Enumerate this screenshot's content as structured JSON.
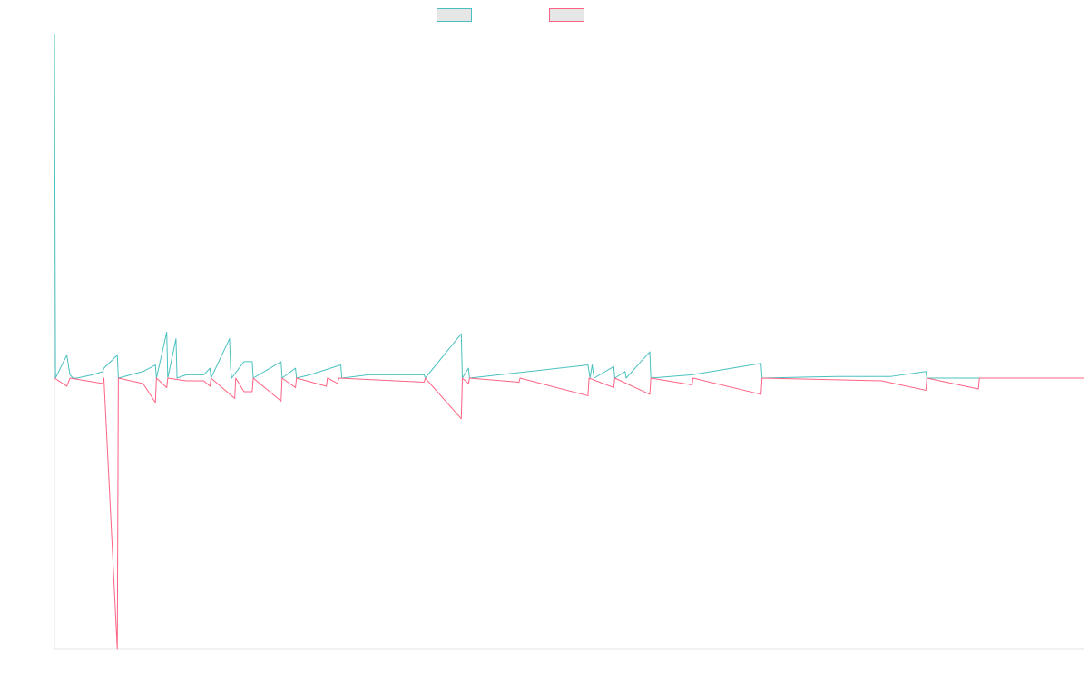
{
  "legend": {
    "items": [
      {
        "name": "",
        "color": "#4bc0c0"
      },
      {
        "name": "",
        "color": "#ff6384"
      }
    ]
  },
  "chart_data": {
    "type": "line",
    "title": "",
    "xlabel": "",
    "ylabel": "",
    "grid": false,
    "legend_position": "top",
    "xlim": [
      0,
      1000
    ],
    "ylim": [
      -1,
      1.05
    ],
    "series": [
      {
        "name": "",
        "color": "#4bc0c0",
        "points": [
          [
            0,
            1.05
          ],
          [
            1,
            0
          ],
          [
            12,
            0.07
          ],
          [
            15,
            0.01
          ],
          [
            18,
            0
          ],
          [
            22,
            0
          ],
          [
            37,
            0.01
          ],
          [
            47,
            0.02
          ],
          [
            48,
            0.03
          ],
          [
            61,
            0.07
          ],
          [
            62,
            0
          ],
          [
            86,
            0.02
          ],
          [
            98,
            0.04
          ],
          [
            99,
            0
          ],
          [
            109,
            0.14
          ],
          [
            110,
            0
          ],
          [
            118,
            0.12
          ],
          [
            119,
            0
          ],
          [
            128,
            0.01
          ],
          [
            145,
            0.01
          ],
          [
            151,
            0.03
          ],
          [
            152,
            0
          ],
          [
            170,
            0.12
          ],
          [
            171,
            0.03
          ],
          [
            172,
            0
          ],
          [
            184,
            0.05
          ],
          [
            192,
            0.05
          ],
          [
            193,
            0
          ],
          [
            220,
            0.05
          ],
          [
            221,
            0
          ],
          [
            234,
            0.03
          ],
          [
            235,
            0
          ],
          [
            248,
            0.01
          ],
          [
            278,
            0.04
          ],
          [
            279,
            0
          ],
          [
            305,
            0.01
          ],
          [
            334,
            0.01
          ],
          [
            359,
            0.01
          ],
          [
            360,
            0
          ],
          [
            395,
            0.135
          ],
          [
            396,
            0
          ],
          [
            402,
            0.03
          ],
          [
            403,
            0
          ],
          [
            518,
            0.04
          ],
          [
            520,
            0
          ],
          [
            522,
            0.04
          ],
          [
            524,
            0
          ],
          [
            543,
            0.035
          ],
          [
            544,
            0
          ],
          [
            554,
            0.02
          ],
          [
            555,
            0
          ],
          [
            578,
            0.08
          ],
          [
            579,
            0
          ],
          [
            619,
            0.01
          ],
          [
            686,
            0.045
          ],
          [
            687,
            0
          ],
          [
            760,
            0.005
          ],
          [
            812,
            0.005
          ],
          [
            846,
            0.02
          ],
          [
            847,
            0
          ],
          [
            1000,
            0
          ]
        ]
      },
      {
        "name": "",
        "color": "#ff6384",
        "points": [
          [
            0,
            0
          ],
          [
            12,
            -0.03
          ],
          [
            15,
            0
          ],
          [
            47,
            -0.02
          ],
          [
            48,
            0
          ],
          [
            61,
            -1
          ],
          [
            62,
            0
          ],
          [
            86,
            -0.02
          ],
          [
            98,
            -0.09
          ],
          [
            99,
            0
          ],
          [
            109,
            -0.035
          ],
          [
            110,
            0
          ],
          [
            128,
            -0.01
          ],
          [
            145,
            -0.01
          ],
          [
            151,
            -0.03
          ],
          [
            152,
            0
          ],
          [
            175,
            -0.075
          ],
          [
            176,
            0
          ],
          [
            184,
            -0.05
          ],
          [
            192,
            -0.05
          ],
          [
            193,
            0
          ],
          [
            220,
            -0.085
          ],
          [
            221,
            0
          ],
          [
            234,
            -0.035
          ],
          [
            235,
            0
          ],
          [
            264,
            -0.03
          ],
          [
            265,
            0
          ],
          [
            275,
            -0.02
          ],
          [
            276,
            0
          ],
          [
            359,
            -0.015
          ],
          [
            360,
            0
          ],
          [
            395,
            -0.15
          ],
          [
            396,
            0
          ],
          [
            402,
            -0.02
          ],
          [
            403,
            0
          ],
          [
            451,
            -0.015
          ],
          [
            452,
            0
          ],
          [
            518,
            -0.065
          ],
          [
            519,
            0
          ],
          [
            543,
            -0.035
          ],
          [
            544,
            0
          ],
          [
            578,
            -0.06
          ],
          [
            579,
            0
          ],
          [
            619,
            -0.025
          ],
          [
            620,
            0
          ],
          [
            686,
            -0.06
          ],
          [
            687,
            0
          ],
          [
            803,
            -0.01
          ],
          [
            846,
            -0.045
          ],
          [
            847,
            0
          ],
          [
            897,
            -0.04
          ],
          [
            898,
            0
          ],
          [
            1000,
            0
          ]
        ]
      }
    ]
  }
}
